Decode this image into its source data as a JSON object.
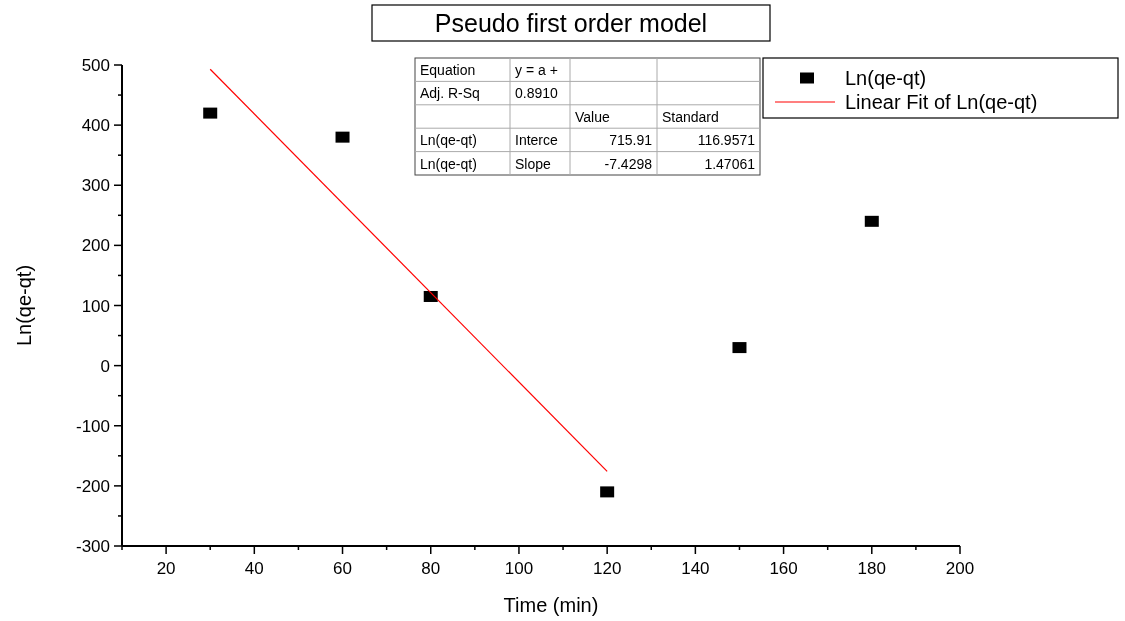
{
  "chart_data": {
    "type": "scatter",
    "title": "Pseudo first order model",
    "xlabel": "Time (min)",
    "ylabel": "Ln(qe-qt)",
    "xlim": [
      10,
      200
    ],
    "xticks": [
      20,
      40,
      60,
      80,
      100,
      120,
      140,
      160,
      180,
      200
    ],
    "ylim": [
      -300,
      500
    ],
    "yticks": [
      -300,
      -200,
      -100,
      0,
      100,
      200,
      300,
      400,
      500
    ],
    "legend": "top right",
    "grid": false,
    "series": [
      {
        "name": "Ln(qe-qt)",
        "marker": "square",
        "color": "#000000",
        "x": [
          30,
          60,
          80,
          120,
          150,
          180
        ],
        "values": [
          420,
          380,
          115,
          -210,
          30,
          240
        ]
      },
      {
        "name": "Linear Fit of Ln(qe-qt)",
        "type": "line",
        "line_style": "solid",
        "color": "#ff0000",
        "x": [
          30,
          120
        ],
        "values": [
          493,
          -176
        ]
      }
    ],
    "annotations": [
      "Equation\ty = a +\t\t",
      "Adj. R-Sq\t0.8910\t\t",
      "\t\tValue\tStandard",
      "Ln(qe-qt)\tInterce\t715.91\t116.9571",
      "Ln(qe-qt)\tSlope\t-7.4298\t1.47061"
    ]
  }
}
